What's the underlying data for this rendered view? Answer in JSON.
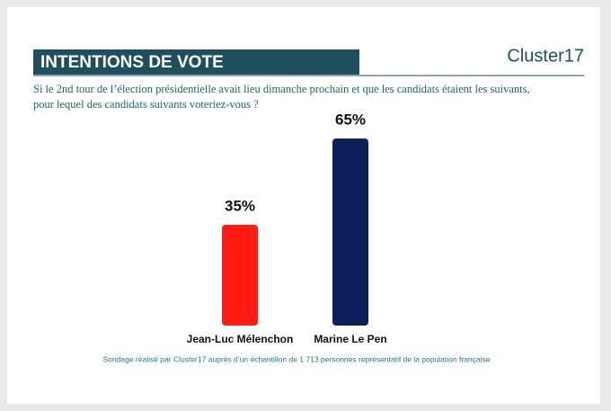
{
  "chart_data": {
    "type": "bar",
    "title": "INTENTIONS DE VOTE",
    "brand": "Cluster17",
    "subtitle": "Si le 2nd tour de l’élection présidentielle avait lieu dimanche prochain et que les candidats étaient les suivants, pour lequel des candidats suivants voteriez-vous ?",
    "categories": [
      "Jean-Luc Mélenchon",
      "Marine Le Pen"
    ],
    "values": [
      35,
      65
    ],
    "value_labels": [
      "35%",
      "65%"
    ],
    "colors": [
      "#ff1a12",
      "#0c1f5b"
    ],
    "source": "Sondage réalisé par Cluster17 auprès d’un échantillon de 1 713 personnes représentatif de la population française"
  }
}
